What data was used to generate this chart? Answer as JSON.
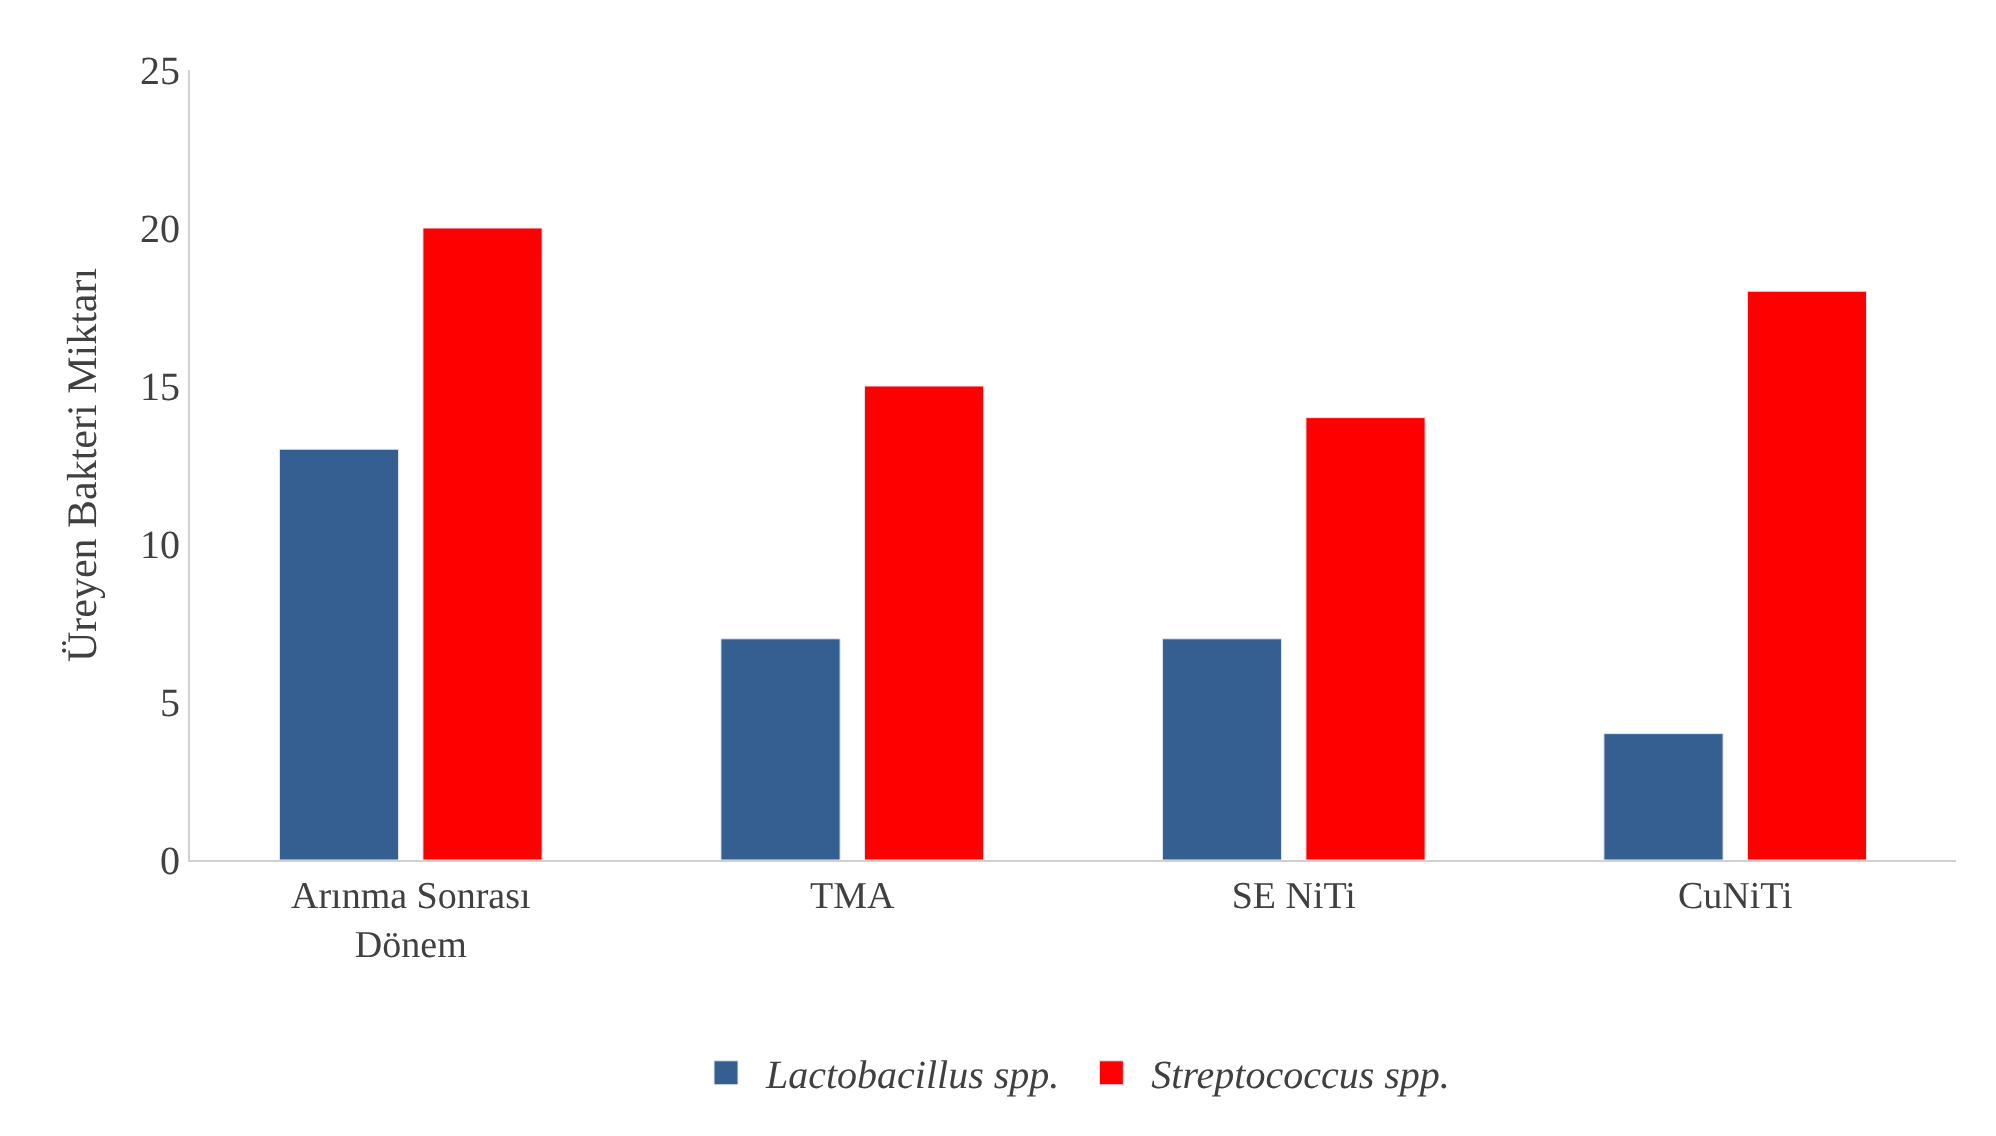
{
  "chart_data": {
    "type": "bar",
    "ylabel": "Üreyen Bakteri Miktarı",
    "categories": [
      "Arınma Sonrası Dönem",
      "TMA",
      "SE NiTi",
      "CuNiTi"
    ],
    "series": [
      {
        "name": "Lactobacillus spp.",
        "color": "#355f91",
        "values": [
          13,
          7,
          7,
          4
        ]
      },
      {
        "name": "Streptococcus spp.",
        "color": "#ff0000",
        "values": [
          20,
          15,
          14,
          18
        ]
      }
    ],
    "ylim": [
      0,
      25
    ],
    "yticks": [
      0,
      5,
      10,
      15,
      20,
      25
    ],
    "grid": false,
    "legend": "bottom"
  }
}
